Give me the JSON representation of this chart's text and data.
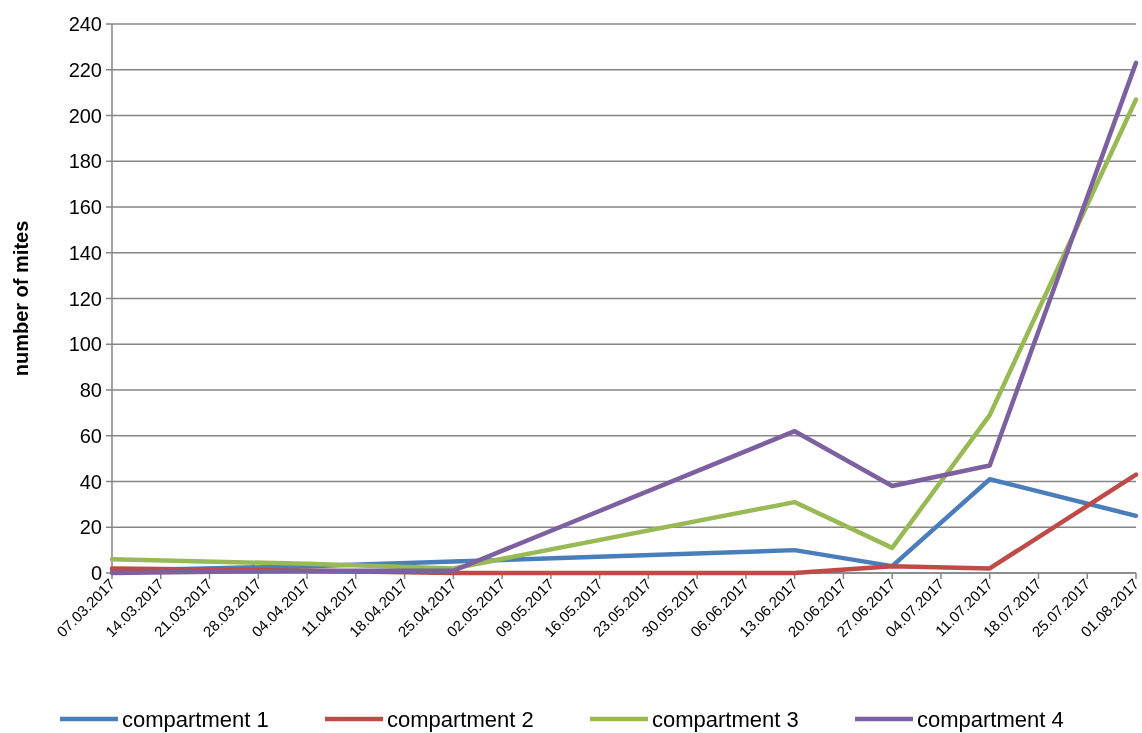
{
  "chart_data": {
    "type": "line",
    "ylabel": "number of mites",
    "x": [
      "2017-03-07",
      "2017-04-04",
      "2017-04-25",
      "2017-06-13",
      "2017-06-27",
      "2017-07-11",
      "2017-08-01"
    ],
    "series": [
      {
        "name": "compartment 1",
        "color": "#4a7ebb",
        "values": [
          1,
          3,
          5,
          10,
          3,
          41,
          25
        ]
      },
      {
        "name": "compartment 2",
        "color": "#be4b48",
        "values": [
          2,
          1,
          0,
          0,
          3,
          2,
          43
        ]
      },
      {
        "name": "compartment 3",
        "color": "#98b954",
        "values": [
          6,
          4,
          2,
          31,
          11,
          69,
          207
        ]
      },
      {
        "name": "compartment 4",
        "color": "#7d60a0",
        "values": [
          0,
          1,
          1,
          62,
          38,
          47,
          223
        ]
      }
    ],
    "xlim": [
      "2017-03-07",
      "2017-08-01"
    ],
    "xticks": [
      {
        "value": "2017-03-07",
        "label": "07.03.2017"
      },
      {
        "value": "2017-03-14",
        "label": "14.03.2017"
      },
      {
        "value": "2017-03-21",
        "label": "21.03.2017"
      },
      {
        "value": "2017-03-28",
        "label": "28.03.2017"
      },
      {
        "value": "2017-04-04",
        "label": "04.04.2017"
      },
      {
        "value": "2017-04-11",
        "label": "11.04.2017"
      },
      {
        "value": "2017-04-18",
        "label": "18.04.2017"
      },
      {
        "value": "2017-04-25",
        "label": "25.04.2017"
      },
      {
        "value": "2017-05-02",
        "label": "02.05.2017"
      },
      {
        "value": "2017-05-09",
        "label": "09.05.2017"
      },
      {
        "value": "2017-05-16",
        "label": "16.05.2017"
      },
      {
        "value": "2017-05-23",
        "label": "23.05.2017"
      },
      {
        "value": "2017-05-30",
        "label": "30.05.2017"
      },
      {
        "value": "2017-06-06",
        "label": "06.06.2017"
      },
      {
        "value": "2017-06-13",
        "label": "13.06.2017"
      },
      {
        "value": "2017-06-20",
        "label": "20.06.2017"
      },
      {
        "value": "2017-06-27",
        "label": "27.06.2017"
      },
      {
        "value": "2017-07-04",
        "label": "04.07.2017"
      },
      {
        "value": "2017-07-11",
        "label": "11.07.2017"
      },
      {
        "value": "2017-07-18",
        "label": "18.07.2017"
      },
      {
        "value": "2017-07-25",
        "label": "25.07.2017"
      },
      {
        "value": "2017-08-01",
        "label": "01.08.2017"
      }
    ],
    "ylim": [
      0,
      240
    ],
    "yticks": [
      0,
      20,
      40,
      60,
      80,
      100,
      120,
      140,
      160,
      180,
      200,
      220,
      240
    ],
    "grid": "y",
    "legend": "bottom",
    "marker": "none",
    "line_style": "solid"
  }
}
